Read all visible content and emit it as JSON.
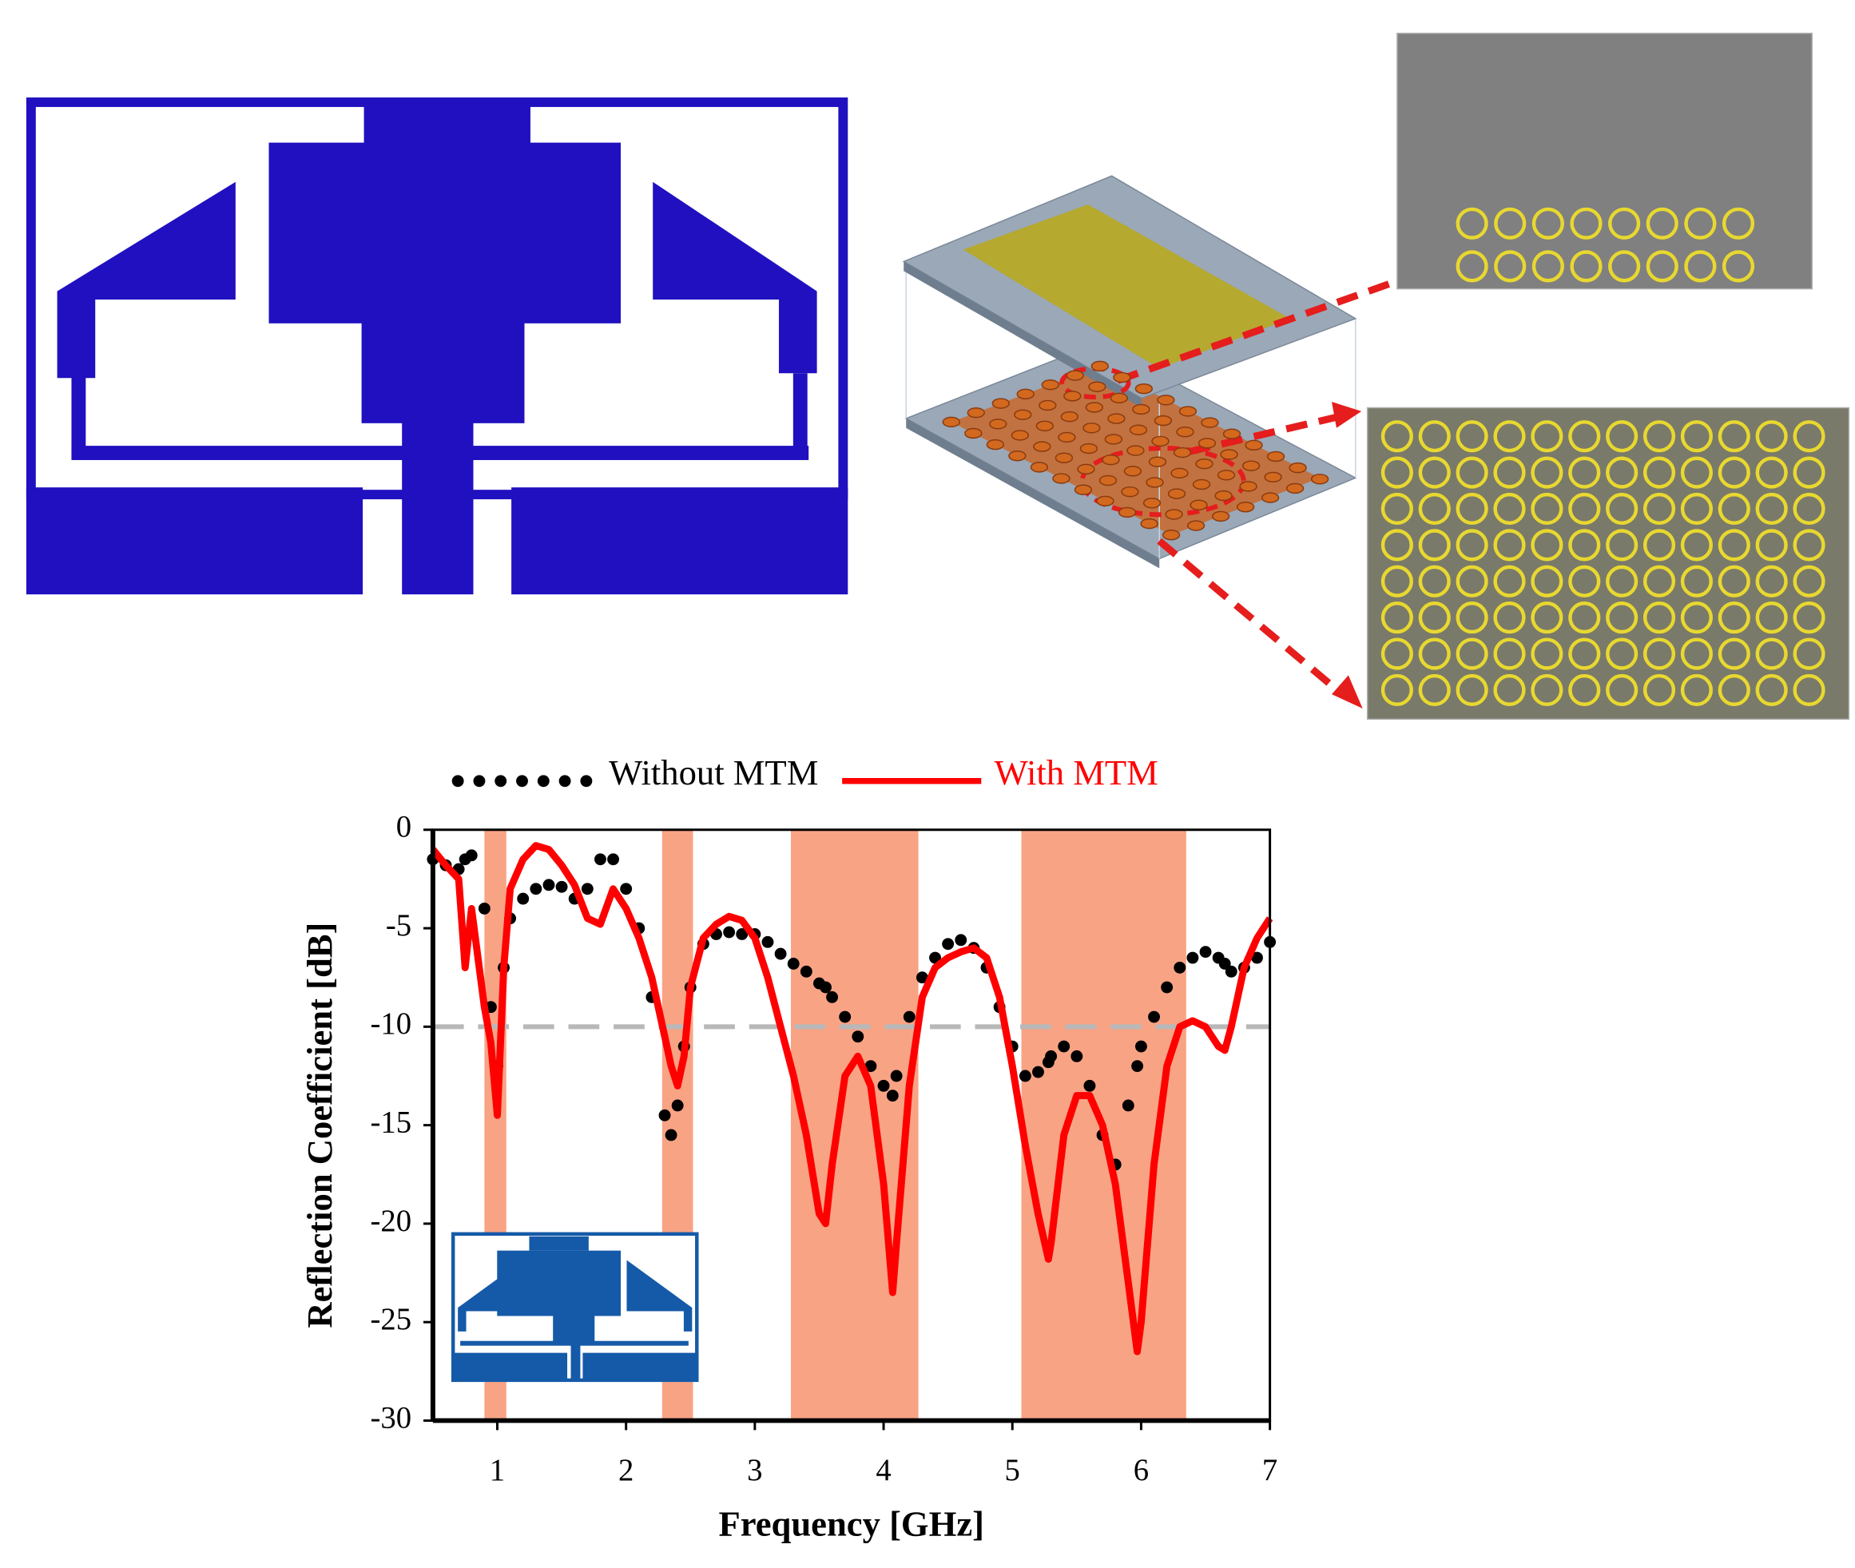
{
  "chart_data": {
    "type": "line",
    "xlabel": "Frequency [GHz]",
    "ylabel": "Reflection Coefficient [dB]",
    "xlim": [
      0.5,
      7
    ],
    "xticks": [
      1,
      2,
      3,
      4,
      5,
      6,
      7
    ],
    "ylim": [
      -30,
      0
    ],
    "yticks": [
      0,
      -5,
      -10,
      -15,
      -20,
      -25,
      -30
    ],
    "legend": "top",
    "threshold": -10,
    "shaded_ranges": [
      [
        0.9,
        1.07
      ],
      [
        2.28,
        2.52
      ],
      [
        3.28,
        4.27
      ],
      [
        5.07,
        6.35
      ]
    ],
    "shade_color": "#f9a385",
    "x": [
      0.5,
      0.6,
      0.7,
      0.75,
      0.8,
      0.9,
      0.95,
      1.0,
      1.05,
      1.1,
      1.2,
      1.3,
      1.4,
      1.5,
      1.6,
      1.7,
      1.8,
      1.9,
      2.0,
      2.1,
      2.2,
      2.3,
      2.35,
      2.4,
      2.45,
      2.5,
      2.6,
      2.7,
      2.8,
      2.9,
      3.0,
      3.1,
      3.2,
      3.3,
      3.4,
      3.5,
      3.55,
      3.6,
      3.7,
      3.8,
      3.9,
      4.0,
      4.07,
      4.1,
      4.2,
      4.3,
      4.4,
      4.5,
      4.6,
      4.7,
      4.8,
      4.9,
      5.0,
      5.1,
      5.2,
      5.28,
      5.3,
      5.4,
      5.5,
      5.6,
      5.7,
      5.8,
      5.9,
      5.97,
      6.0,
      6.1,
      6.2,
      6.3,
      6.4,
      6.5,
      6.6,
      6.65,
      6.7,
      6.8,
      6.9,
      7.0
    ],
    "series": [
      {
        "name": "Without MTM",
        "color": "#000000",
        "style": "dots",
        "values": [
          -1.5,
          -1.8,
          -2,
          -1.5,
          -1.3,
          -4,
          -9,
          -12,
          -7,
          -4.5,
          -3.5,
          -3,
          -2.8,
          -2.9,
          -3.5,
          -3,
          -1.5,
          -1.5,
          -3,
          -5,
          -8.5,
          -14.5,
          -15.5,
          -14,
          -11,
          -8,
          -5.8,
          -5.3,
          -5.2,
          -5.3,
          -5.3,
          -5.7,
          -6.3,
          -6.8,
          -7.2,
          -7.8,
          -8,
          -8.5,
          -9.5,
          -10.5,
          -12,
          -13,
          -13.5,
          -12.5,
          -9.5,
          -7.5,
          -6.5,
          -5.8,
          -5.6,
          -6,
          -7,
          -9,
          -11,
          -12.5,
          -12.3,
          -11.8,
          -11.5,
          -11,
          -11.5,
          -13,
          -15.5,
          -17,
          -14,
          -12,
          -11,
          -9.5,
          -8,
          -7,
          -6.5,
          -6.2,
          -6.5,
          -6.8,
          -7.2,
          -7,
          -6.5,
          -5.7
        ]
      },
      {
        "name": "With MTM",
        "color": "#ff0000",
        "style": "solid",
        "values": [
          -1,
          -1.8,
          -2.5,
          -7,
          -4,
          -9,
          -10.8,
          -14.5,
          -7,
          -3,
          -1.5,
          -0.8,
          -1,
          -1.8,
          -2.8,
          -4.5,
          -4.8,
          -3,
          -4,
          -5.5,
          -7.5,
          -10.5,
          -12,
          -13,
          -11.5,
          -8,
          -5.5,
          -4.8,
          -4.4,
          -4.6,
          -5.5,
          -7.5,
          -10,
          -12.5,
          -15.5,
          -19.5,
          -20,
          -17,
          -12.5,
          -11.5,
          -13,
          -18,
          -23.5,
          -21,
          -13,
          -8.5,
          -7,
          -6.5,
          -6.2,
          -6,
          -6.5,
          -8.5,
          -12,
          -16,
          -19.5,
          -21.8,
          -21,
          -15.5,
          -13.5,
          -13.5,
          -15,
          -18,
          -23,
          -26.5,
          -25,
          -17,
          -12,
          -10,
          -9.7,
          -10,
          -11,
          -11.2,
          -10,
          -7,
          -5.5,
          -4.5
        ]
      }
    ]
  }
}
